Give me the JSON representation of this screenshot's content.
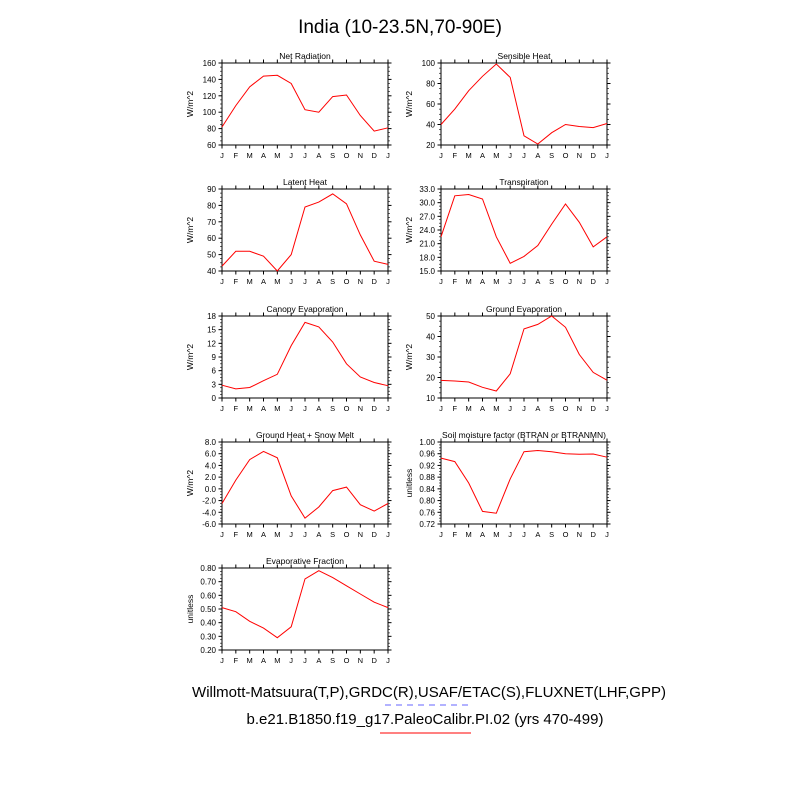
{
  "figure": {
    "title": "India (10-23.5N,70-90E)",
    "footer_obs": "Willmott-Matsuura(T,P),GRDC(R),USAF/ETAC(S),FLUXNET(LHF,GPP)",
    "footer_model": "b.e21.B1850.f19_g17.PaleoCalibr.PI.02 (yrs 470-499)"
  },
  "colors": {
    "model_line": "#ff0000",
    "obs_line": "#6666ff",
    "axis": "#000000"
  },
  "months": [
    "J",
    "F",
    "M",
    "A",
    "M",
    "J",
    "J",
    "A",
    "S",
    "O",
    "N",
    "D",
    "J"
  ],
  "chart_data": [
    {
      "type": "line",
      "title": "Net Radiation",
      "ylabel": "W/m^2",
      "ylim": [
        60,
        160
      ],
      "yticks": [
        "60",
        "80",
        "100",
        "120",
        "140",
        "160"
      ],
      "values": [
        82,
        108,
        131,
        144,
        145,
        135,
        103,
        100,
        119,
        121,
        96,
        77,
        81
      ]
    },
    {
      "type": "line",
      "title": "Sensible Heat",
      "ylabel": "W/m^2",
      "ylim": [
        20,
        100
      ],
      "yticks": [
        "20",
        "40",
        "60",
        "80",
        "100"
      ],
      "values": [
        40,
        55,
        73,
        87,
        99,
        86,
        29,
        21,
        32,
        40,
        38,
        37,
        41
      ]
    },
    {
      "type": "line",
      "title": "Latent Heat",
      "ylabel": "W/m^2",
      "ylim": [
        40,
        90
      ],
      "yticks": [
        "40",
        "50",
        "60",
        "70",
        "80",
        "90"
      ],
      "values": [
        43,
        52,
        52,
        49,
        40,
        50,
        79,
        82,
        87,
        81,
        62,
        46,
        44
      ]
    },
    {
      "type": "line",
      "title": "Transpiration",
      "ylabel": "W/m^2",
      "ylim": [
        15,
        33
      ],
      "yticks": [
        "15.0",
        "18.0",
        "21.0",
        "24.0",
        "27.0",
        "30.0",
        "33.0"
      ],
      "values": [
        22.5,
        31.5,
        31.8,
        30.8,
        22.5,
        16.7,
        18.2,
        20.6,
        25.3,
        29.7,
        25.7,
        20.3,
        22.5
      ]
    },
    {
      "type": "line",
      "title": "Canopy Evaporation",
      "ylabel": "W/m^2",
      "ylim": [
        0,
        18
      ],
      "yticks": [
        "0",
        "3",
        "6",
        "9",
        "12",
        "15",
        "18"
      ],
      "values": [
        2.8,
        2.0,
        2.3,
        3.8,
        5.2,
        11.5,
        16.6,
        15.6,
        12.3,
        7.5,
        4.6,
        3.4,
        2.7
      ]
    },
    {
      "type": "line",
      "title": "Ground Evaporation",
      "ylabel": "W/m^2",
      "ylim": [
        10,
        50
      ],
      "yticks": [
        "10",
        "20",
        "30",
        "40",
        "50"
      ],
      "values": [
        18.6,
        18.3,
        17.8,
        15.2,
        13.4,
        21.8,
        43.7,
        45.9,
        50,
        44.5,
        31.2,
        22.5,
        18.7
      ]
    },
    {
      "type": "line",
      "title": "Ground Heat + Snow Melt",
      "ylabel": "W/m^2",
      "ylim": [
        -6,
        8
      ],
      "yticks": [
        "-6.0",
        "-4.0",
        "-2.0",
        "0.0",
        "2.0",
        "4.0",
        "6.0",
        "8.0"
      ],
      "values": [
        -2.5,
        1.5,
        5.0,
        6.4,
        5.3,
        -1.2,
        -5.0,
        -3.1,
        -0.3,
        0.3,
        -2.7,
        -3.8,
        -2.5
      ]
    },
    {
      "type": "line",
      "title": "Soil moisture factor (BTRAN or BTRANMN)",
      "ylabel": "unitless",
      "ylim": [
        0.72,
        1.0
      ],
      "yticks": [
        "0.72",
        "0.76",
        "0.80",
        "0.84",
        "0.88",
        "0.92",
        "0.96",
        "1.00"
      ],
      "values": [
        0.945,
        0.933,
        0.86,
        0.763,
        0.757,
        0.874,
        0.967,
        0.971,
        0.967,
        0.96,
        0.958,
        0.959,
        0.948
      ]
    },
    {
      "type": "line",
      "title": "Evaporative Fraction",
      "ylabel": "unitless",
      "ylim": [
        0.2,
        0.8
      ],
      "yticks": [
        "0.20",
        "0.30",
        "0.40",
        "0.50",
        "0.60",
        "0.70",
        "0.80"
      ],
      "values": [
        0.51,
        0.48,
        0.41,
        0.36,
        0.29,
        0.37,
        0.72,
        0.78,
        0.73,
        0.67,
        0.61,
        0.55,
        0.51
      ]
    }
  ]
}
